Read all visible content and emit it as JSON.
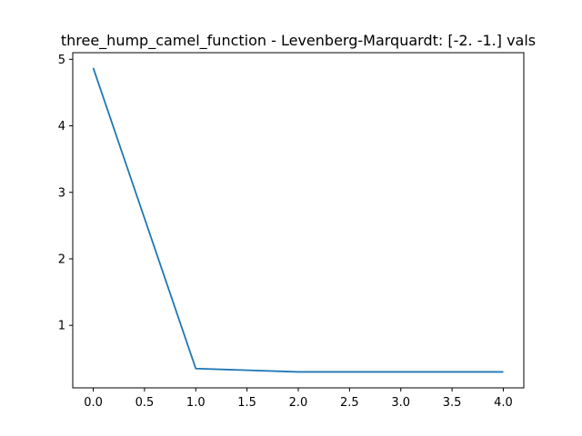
{
  "chart_data": {
    "type": "line",
    "title": "three_hump_camel_function - Levenberg-Marquardt: [-2. -1.] vals",
    "xlabel": "",
    "ylabel": "",
    "xlim": [
      -0.2,
      4.2
    ],
    "ylim": [
      0.06,
      5.1
    ],
    "x_ticks": [
      0.0,
      0.5,
      1.0,
      1.5,
      2.0,
      2.5,
      3.0,
      3.5,
      4.0
    ],
    "x_tick_labels": [
      "0.0",
      "0.5",
      "1.0",
      "1.5",
      "2.0",
      "2.5",
      "3.0",
      "3.5",
      "4.0"
    ],
    "y_ticks": [
      1,
      2,
      3,
      4,
      5
    ],
    "y_tick_labels": [
      "1",
      "2",
      "3",
      "4",
      "5"
    ],
    "grid": false,
    "series": [
      {
        "color": "#1f77b4",
        "x": [
          0,
          1,
          2,
          3,
          4
        ],
        "y": [
          4.87,
          0.35,
          0.3,
          0.3,
          0.3
        ]
      }
    ]
  }
}
